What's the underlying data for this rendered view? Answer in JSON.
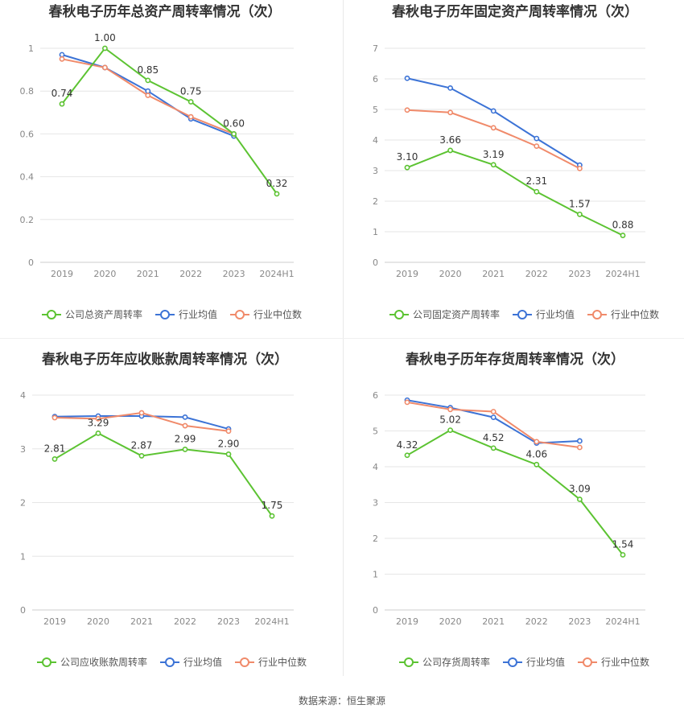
{
  "source_label": "数据来源：恒生聚源",
  "colors": {
    "company": "#5cc332",
    "average": "#3c73d6",
    "median": "#f08a6a",
    "grid": "#e6e6e6",
    "axis_text": "#888888",
    "title": "#333333"
  },
  "chart_data": [
    {
      "type": "line",
      "title": "春秋电子历年总资产周转率情况（次）",
      "categories": [
        "2019",
        "2020",
        "2021",
        "2022",
        "2023",
        "2024H1"
      ],
      "yticks": [
        "0",
        "0.2",
        "0.4",
        "0.6",
        "0.8",
        "1"
      ],
      "ylim": [
        0,
        1
      ],
      "series": [
        {
          "name": "公司总资产周转率",
          "role": "company",
          "values": [
            0.74,
            1.0,
            0.85,
            0.75,
            0.6,
            0.32
          ],
          "labels": [
            "0.74",
            "1.00",
            "0.85",
            "0.75",
            "0.60",
            "0.32"
          ]
        },
        {
          "name": "行业均值",
          "role": "average",
          "values": [
            0.97,
            0.91,
            0.8,
            0.67,
            0.59,
            null
          ]
        },
        {
          "name": "行业中位数",
          "role": "median",
          "values": [
            0.95,
            0.91,
            0.78,
            0.68,
            0.6,
            null
          ]
        }
      ]
    },
    {
      "type": "line",
      "title": "春秋电子历年固定资产周转率情况（次）",
      "categories": [
        "2019",
        "2020",
        "2021",
        "2022",
        "2023",
        "2024H1"
      ],
      "yticks": [
        "0",
        "1",
        "2",
        "3",
        "4",
        "5",
        "6",
        "7"
      ],
      "ylim": [
        0,
        7
      ],
      "series": [
        {
          "name": "公司固定资产周转率",
          "role": "company",
          "values": [
            3.1,
            3.66,
            3.19,
            2.31,
            1.57,
            0.88
          ],
          "labels": [
            "3.10",
            "3.66",
            "3.19",
            "2.31",
            "1.57",
            "0.88"
          ]
        },
        {
          "name": "行业均值",
          "role": "average",
          "values": [
            6.02,
            5.7,
            4.95,
            4.05,
            3.18,
            null
          ]
        },
        {
          "name": "行业中位数",
          "role": "median",
          "values": [
            4.98,
            4.9,
            4.4,
            3.8,
            3.07,
            null
          ]
        }
      ]
    },
    {
      "type": "line",
      "title": "春秋电子历年应收账款周转率情况（次）",
      "categories": [
        "2019",
        "2020",
        "2021",
        "2022",
        "2023",
        "2024H1"
      ],
      "yticks": [
        "0",
        "1",
        "2",
        "3",
        "4"
      ],
      "ylim": [
        0,
        4
      ],
      "series": [
        {
          "name": "公司应收账款周转率",
          "role": "company",
          "values": [
            2.81,
            3.29,
            2.87,
            2.99,
            2.9,
            1.75
          ],
          "labels": [
            "2.81",
            "3.29",
            "2.87",
            "2.99",
            "2.90",
            "1.75"
          ]
        },
        {
          "name": "行业均值",
          "role": "average",
          "values": [
            3.6,
            3.61,
            3.61,
            3.59,
            3.37,
            null
          ]
        },
        {
          "name": "行业中位数",
          "role": "median",
          "values": [
            3.58,
            3.56,
            3.67,
            3.43,
            3.33,
            null
          ]
        }
      ]
    },
    {
      "type": "line",
      "title": "春秋电子历年存货周转率情况（次）",
      "categories": [
        "2019",
        "2020",
        "2021",
        "2022",
        "2023",
        "2024H1"
      ],
      "yticks": [
        "0",
        "1",
        "2",
        "3",
        "4",
        "5",
        "6"
      ],
      "ylim": [
        0,
        6
      ],
      "series": [
        {
          "name": "公司存货周转率",
          "role": "company",
          "values": [
            4.32,
            5.02,
            4.52,
            4.06,
            3.09,
            1.54
          ],
          "labels": [
            "4.32",
            "5.02",
            "4.52",
            "4.06",
            "3.09",
            "1.54"
          ]
        },
        {
          "name": "行业均值",
          "role": "average",
          "values": [
            5.86,
            5.65,
            5.38,
            4.66,
            4.72,
            null
          ]
        },
        {
          "name": "行业中位数",
          "role": "median",
          "values": [
            5.8,
            5.6,
            5.54,
            4.7,
            4.54,
            null
          ]
        }
      ]
    }
  ]
}
